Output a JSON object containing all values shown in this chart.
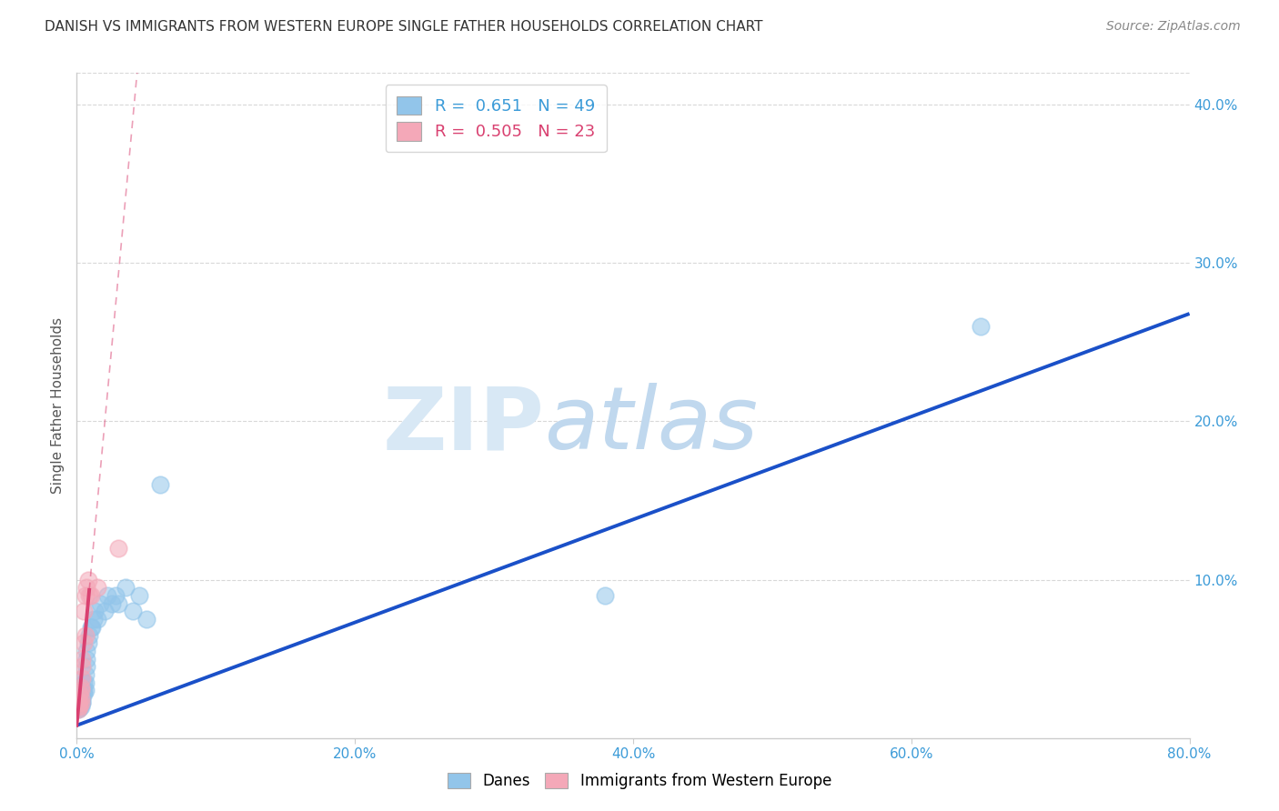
{
  "title": "DANISH VS IMMIGRANTS FROM WESTERN EUROPE SINGLE FATHER HOUSEHOLDS CORRELATION CHART",
  "source": "Source: ZipAtlas.com",
  "ylabel": "Single Father Households",
  "xlim": [
    0.0,
    0.8
  ],
  "ylim": [
    0.0,
    0.42
  ],
  "xtick_vals": [
    0.0,
    0.2,
    0.4,
    0.6,
    0.8
  ],
  "ytick_vals": [
    0.0,
    0.1,
    0.2,
    0.3,
    0.4
  ],
  "xtick_labels": [
    "0.0%",
    "20.0%",
    "40.0%",
    "60.0%",
    "80.0%"
  ],
  "ytick_labels": [
    "",
    "10.0%",
    "20.0%",
    "30.0%",
    "40.0%"
  ],
  "danes_color": "#92C5EA",
  "immigrants_color": "#F4A8B8",
  "danes_line_color": "#1A50C8",
  "immigrants_line_color": "#D94070",
  "R_danes": 0.651,
  "N_danes": 49,
  "R_immigrants": 0.505,
  "N_immigrants": 23,
  "watermark_zip": "ZIP",
  "watermark_atlas": "atlas",
  "danes_x": [
    0.001,
    0.001,
    0.001,
    0.002,
    0.002,
    0.002,
    0.002,
    0.002,
    0.003,
    0.003,
    0.003,
    0.003,
    0.003,
    0.003,
    0.004,
    0.004,
    0.004,
    0.004,
    0.004,
    0.004,
    0.005,
    0.005,
    0.005,
    0.006,
    0.006,
    0.006,
    0.007,
    0.007,
    0.007,
    0.008,
    0.009,
    0.01,
    0.011,
    0.012,
    0.013,
    0.015,
    0.017,
    0.02,
    0.022,
    0.025,
    0.028,
    0.03,
    0.035,
    0.04,
    0.045,
    0.05,
    0.06,
    0.38,
    0.65
  ],
  "danes_y": [
    0.018,
    0.02,
    0.022,
    0.019,
    0.021,
    0.022,
    0.024,
    0.026,
    0.02,
    0.022,
    0.023,
    0.025,
    0.026,
    0.028,
    0.022,
    0.023,
    0.025,
    0.028,
    0.03,
    0.032,
    0.028,
    0.03,
    0.035,
    0.03,
    0.035,
    0.04,
    0.045,
    0.05,
    0.055,
    0.06,
    0.065,
    0.07,
    0.07,
    0.075,
    0.08,
    0.075,
    0.085,
    0.08,
    0.09,
    0.085,
    0.09,
    0.085,
    0.095,
    0.08,
    0.09,
    0.075,
    0.16,
    0.09,
    0.26
  ],
  "immigrants_x": [
    0.001,
    0.001,
    0.001,
    0.002,
    0.002,
    0.002,
    0.003,
    0.003,
    0.003,
    0.003,
    0.004,
    0.004,
    0.004,
    0.005,
    0.005,
    0.006,
    0.006,
    0.007,
    0.008,
    0.009,
    0.01,
    0.015,
    0.03
  ],
  "immigrants_y": [
    0.018,
    0.02,
    0.022,
    0.02,
    0.023,
    0.028,
    0.022,
    0.025,
    0.03,
    0.032,
    0.038,
    0.045,
    0.05,
    0.06,
    0.08,
    0.065,
    0.09,
    0.095,
    0.1,
    0.09,
    0.09,
    0.095,
    0.12
  ],
  "blue_line_x": [
    0.0,
    0.8
  ],
  "blue_line_y": [
    0.008,
    0.268
  ],
  "pink_line_x0": 0.0,
  "pink_line_x_solid_end": 0.009,
  "pink_line_x_dash_end": 0.8,
  "pink_line_y0": 0.008,
  "pink_line_slope": 9.5
}
